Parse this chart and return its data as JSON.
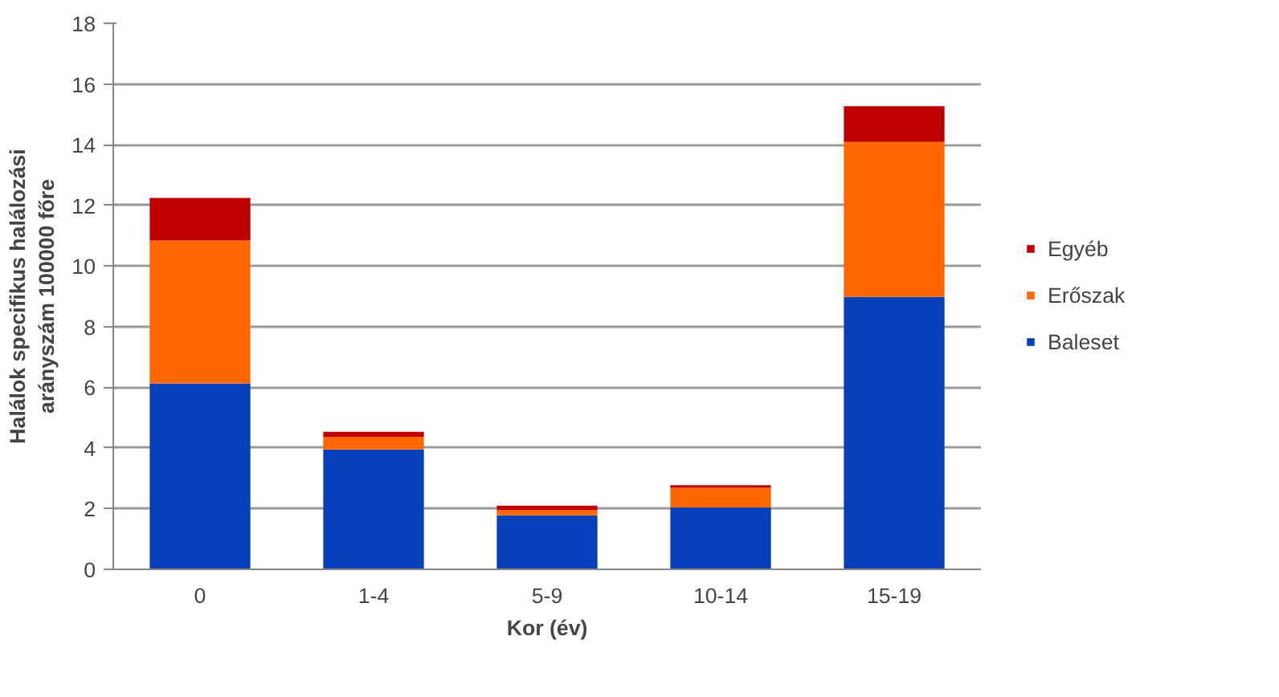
{
  "chart_data": {
    "type": "bar",
    "stacked": true,
    "xlabel": "Kor (év)",
    "ylabel": "Halálok specifikus halálozási arányszám 100000 főre",
    "categories": [
      "0",
      "1-4",
      "5-9",
      "10-14",
      "15-19"
    ],
    "series": [
      {
        "name": "Baleset",
        "color": "#0540b8",
        "values": [
          6.13,
          3.95,
          1.78,
          2.04,
          8.98
        ]
      },
      {
        "name": "Erőszak",
        "color": "#ff6600",
        "values": [
          4.71,
          0.42,
          0.18,
          0.65,
          5.11
        ]
      },
      {
        "name": "Egyéb",
        "color": "#c00000",
        "values": [
          1.4,
          0.16,
          0.14,
          0.08,
          1.18
        ]
      }
    ],
    "ylim": [
      0,
      18
    ],
    "yticks": [
      0,
      2,
      4,
      6,
      8,
      10,
      12,
      14,
      16,
      18
    ],
    "grid": "y",
    "legend": "right"
  }
}
